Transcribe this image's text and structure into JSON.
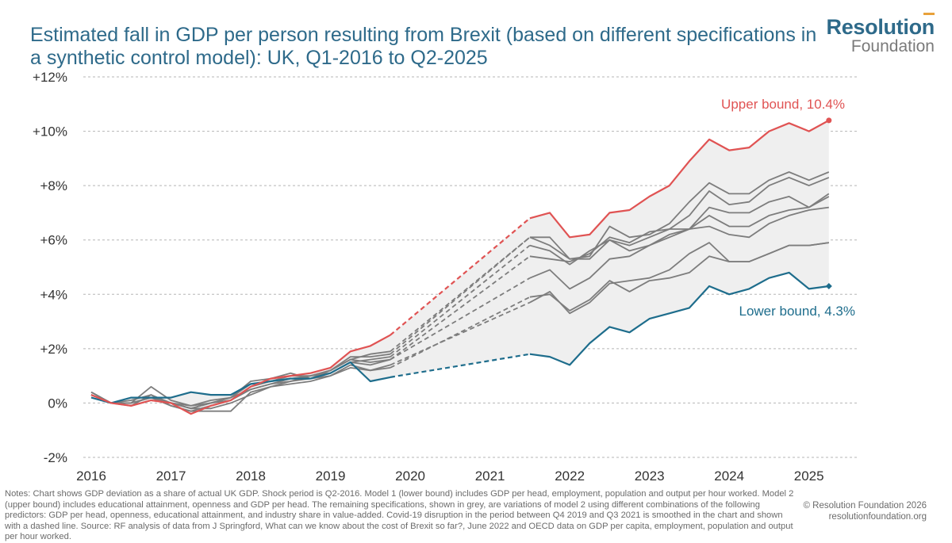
{
  "title": "Estimated fall in GDP per person resulting from Brexit (based on different specifications in a synthetic control model): UK, Q1-2016 to Q2-2025",
  "logo": {
    "line1": "Resolution",
    "line2": "Foundation"
  },
  "notes": "Notes: Chart shows GDP deviation as a share of actual UK GDP. Shock period is Q2-2016. Model 1 (lower bound) includes GDP per head, employment, population and output per hour worked. Model 2 (upper bound) includes educational attainment, openness and GDP per head. The remaining specifications, shown in grey, are variations of model 2 using different combinations of the following predictors: GDP per head, openness, educational attainment, and industry share in value-added. Covid-19 disruption in the period between Q4 2019 and Q3 2021 is smoothed in the chart and shown with a dashed line. Source: RF analysis of data from J Springford, What can we know about the cost of Brexit so far?, June 2022 and OECD data on GDP per capita, employment, population and output per hour worked.",
  "copyright": {
    "line1": "© Resolution Foundation 2026",
    "line2": "resolutionfoundation.org"
  },
  "colors": {
    "upper": "#e05353",
    "lower": "#1e6d8c",
    "grey": "#7d7d7d",
    "band": "#efefef",
    "title": "#2e6a8a"
  },
  "chart_data": {
    "type": "line",
    "x_axis": {
      "min": 2016,
      "max": 2025.6,
      "ticks": [
        2016,
        2017,
        2018,
        2019,
        2020,
        2021,
        2022,
        2023,
        2024,
        2025
      ],
      "tick_labels": [
        "2016",
        "2017",
        "2018",
        "2019",
        "2020",
        "2021",
        "2022",
        "2023",
        "2024",
        "2025"
      ]
    },
    "y_axis": {
      "min": -2,
      "max": 12,
      "ticks": [
        -2,
        0,
        2,
        4,
        6,
        8,
        10,
        12
      ],
      "tick_labels": [
        "-2%",
        "0%",
        "+2%",
        "+4%",
        "+6%",
        "+8%",
        "+10%",
        "+12%"
      ]
    },
    "grid": "horizontal-dashed",
    "gap": {
      "from": 2019.75,
      "to": 2021.5,
      "style": "dashed"
    },
    "annotations": [
      {
        "series": "upper",
        "text": "Upper bound, 10.4%"
      },
      {
        "series": "lower",
        "text": "Lower bound, 4.3%"
      }
    ],
    "upper": {
      "pre_x": [
        2016.0,
        2016.25,
        2016.5,
        2016.75,
        2017.0,
        2017.25,
        2017.5,
        2017.75,
        2018.0,
        2018.25,
        2018.5,
        2018.75,
        2019.0,
        2019.25,
        2019.5,
        2019.75
      ],
      "pre_y": [
        0.3,
        0.0,
        -0.1,
        0.1,
        0.0,
        -0.4,
        -0.1,
        0.1,
        0.6,
        0.9,
        1.0,
        1.1,
        1.3,
        1.9,
        2.1,
        2.5
      ],
      "post_x": [
        2021.5,
        2021.75,
        2022.0,
        2022.25,
        2022.5,
        2022.75,
        2023.0,
        2023.25,
        2023.5,
        2023.75,
        2024.0,
        2024.25,
        2024.5,
        2024.75,
        2025.0,
        2025.25
      ],
      "post_y": [
        6.8,
        7.0,
        6.1,
        6.2,
        7.0,
        7.1,
        7.6,
        8.0,
        8.9,
        9.7,
        9.3,
        9.4,
        10.0,
        10.3,
        10.0,
        10.4
      ]
    },
    "lower": {
      "pre_x": [
        2016.0,
        2016.25,
        2016.5,
        2016.75,
        2017.0,
        2017.25,
        2017.5,
        2017.75,
        2018.0,
        2018.25,
        2018.5,
        2018.75,
        2019.0,
        2019.25,
        2019.5,
        2019.75
      ],
      "pre_y": [
        0.2,
        0.0,
        0.2,
        0.2,
        0.2,
        0.4,
        0.3,
        0.3,
        0.7,
        0.8,
        0.9,
        0.9,
        1.1,
        1.5,
        0.8,
        0.95
      ],
      "post_x": [
        2021.5,
        2021.75,
        2022.0,
        2022.25,
        2022.5,
        2022.75,
        2023.0,
        2023.25,
        2023.5,
        2023.75,
        2024.0,
        2024.25,
        2024.5,
        2024.75,
        2025.0,
        2025.25
      ],
      "post_y": [
        1.8,
        1.7,
        1.4,
        2.2,
        2.8,
        2.6,
        3.1,
        3.3,
        3.5,
        4.3,
        4.0,
        4.2,
        4.6,
        4.8,
        4.2,
        4.3
      ]
    },
    "grey_series": [
      {
        "pre_x": [
          2016.0,
          2016.25,
          2016.5,
          2016.75,
          2017.0,
          2017.25,
          2017.5,
          2017.75,
          2018.0,
          2018.25,
          2018.5,
          2018.75,
          2019.0,
          2019.25,
          2019.5,
          2019.75
        ],
        "pre_y": [
          0.4,
          0.0,
          0.0,
          0.6,
          0.1,
          -0.1,
          0.1,
          0.2,
          0.8,
          0.9,
          1.1,
          0.9,
          1.2,
          1.6,
          1.8,
          1.9
        ],
        "post_x": [
          2021.5,
          2021.75,
          2022.0,
          2022.25,
          2022.5,
          2022.75,
          2023.0,
          2023.25,
          2023.5,
          2023.75,
          2024.0,
          2024.25,
          2024.5,
          2024.75,
          2025.0,
          2025.25
        ],
        "post_y": [
          6.1,
          6.1,
          5.3,
          5.4,
          6.5,
          6.1,
          6.2,
          6.6,
          7.4,
          8.1,
          7.7,
          7.7,
          8.2,
          8.5,
          8.2,
          8.5
        ]
      },
      {
        "pre_x": [
          2016.0,
          2016.25,
          2016.5,
          2016.75,
          2017.0,
          2017.25,
          2017.5,
          2017.75,
          2018.0,
          2018.25,
          2018.5,
          2018.75,
          2019.0,
          2019.25,
          2019.5,
          2019.75
        ],
        "pre_y": [
          0.3,
          0.0,
          0.1,
          0.3,
          0.0,
          -0.2,
          0.0,
          0.2,
          0.7,
          0.8,
          1.0,
          1.0,
          1.2,
          1.7,
          1.7,
          1.8
        ],
        "post_x": [
          2021.5,
          2021.75,
          2022.0,
          2022.25,
          2022.5,
          2022.75,
          2023.0,
          2023.25,
          2023.5,
          2023.75,
          2024.0,
          2024.25,
          2024.5,
          2024.75,
          2025.0,
          2025.25
        ],
        "post_y": [
          6.1,
          5.8,
          5.3,
          5.3,
          6.0,
          5.8,
          6.1,
          6.4,
          6.9,
          7.8,
          7.3,
          7.4,
          8.0,
          8.3,
          8.0,
          8.3
        ]
      },
      {
        "pre_x": [
          2016.0,
          2016.25,
          2016.5,
          2016.75,
          2017.0,
          2017.25,
          2017.5,
          2017.75,
          2018.0,
          2018.25,
          2018.5,
          2018.75,
          2019.0,
          2019.25,
          2019.5,
          2019.75
        ],
        "pre_y": [
          0.3,
          0.0,
          0.0,
          0.2,
          -0.1,
          -0.3,
          -0.1,
          0.1,
          0.5,
          0.7,
          0.9,
          0.9,
          1.1,
          1.5,
          1.6,
          1.7
        ],
        "post_x": [
          2021.5,
          2021.75,
          2022.0,
          2022.25,
          2022.5,
          2022.75,
          2023.0,
          2023.25,
          2023.5,
          2023.75,
          2024.0,
          2024.25,
          2024.5,
          2024.75,
          2025.0,
          2025.25
        ],
        "post_y": [
          5.8,
          5.6,
          5.1,
          5.6,
          6.0,
          5.6,
          5.8,
          6.1,
          6.4,
          7.2,
          7.0,
          7.0,
          7.4,
          7.6,
          7.2,
          7.6
        ]
      },
      {
        "pre_x": [
          2016.0,
          2016.25,
          2016.5,
          2016.75,
          2017.0,
          2017.25,
          2017.5,
          2017.75,
          2018.0,
          2018.25,
          2018.5,
          2018.75,
          2019.0,
          2019.25,
          2019.5,
          2019.75
        ],
        "pre_y": [
          0.4,
          0.0,
          -0.1,
          0.3,
          -0.1,
          -0.3,
          -0.3,
          -0.3,
          0.4,
          0.6,
          0.8,
          1.0,
          1.2,
          1.6,
          1.5,
          1.6
        ],
        "post_x": [
          2021.5,
          2021.75,
          2022.0,
          2022.25,
          2022.5,
          2022.75,
          2023.0,
          2023.25,
          2023.5,
          2023.75,
          2024.0,
          2024.25,
          2024.5,
          2024.75,
          2025.0,
          2025.25
        ],
        "post_y": [
          4.6,
          4.9,
          4.2,
          4.6,
          5.3,
          5.4,
          5.8,
          6.2,
          6.4,
          6.9,
          6.5,
          6.5,
          6.9,
          7.1,
          7.2,
          7.7
        ]
      },
      {
        "pre_x": [
          2016.0,
          2016.25,
          2016.5,
          2016.75,
          2017.0,
          2017.25,
          2017.5,
          2017.75,
          2018.0,
          2018.25,
          2018.5,
          2018.75,
          2019.0,
          2019.25,
          2019.5,
          2019.75
        ],
        "pre_y": [
          0.3,
          0.0,
          0.0,
          0.2,
          0.0,
          -0.2,
          0.0,
          0.1,
          0.6,
          0.8,
          0.9,
          1.0,
          1.1,
          1.5,
          1.4,
          1.6
        ],
        "post_x": [
          2021.5,
          2021.75,
          2022.0,
          2022.25,
          2022.5,
          2022.75,
          2023.0,
          2023.25,
          2023.5,
          2023.75,
          2024.0,
          2024.25,
          2024.5,
          2024.75,
          2025.0,
          2025.25
        ],
        "post_y": [
          5.4,
          5.3,
          5.2,
          5.5,
          6.1,
          5.9,
          6.3,
          6.4,
          6.4,
          6.5,
          6.2,
          6.1,
          6.6,
          6.9,
          7.1,
          7.2
        ]
      },
      {
        "pre_x": [
          2016.0,
          2016.25,
          2016.5,
          2016.75,
          2017.0,
          2017.25,
          2017.5,
          2017.75,
          2018.0,
          2018.25,
          2018.5,
          2018.75,
          2019.0,
          2019.25,
          2019.5,
          2019.75
        ],
        "pre_y": [
          0.3,
          0.0,
          0.0,
          0.2,
          0.0,
          -0.1,
          0.0,
          0.2,
          0.5,
          0.7,
          0.8,
          0.9,
          1.0,
          1.4,
          1.2,
          1.4
        ],
        "post_x": [
          2021.5,
          2021.75,
          2022.0,
          2022.25,
          2022.5,
          2022.75,
          2023.0,
          2023.25,
          2023.5,
          2023.75,
          2024.0,
          2024.25,
          2024.5,
          2024.75,
          2025.0,
          2025.25
        ],
        "post_y": [
          3.7,
          4.1,
          3.3,
          3.7,
          4.4,
          4.5,
          4.6,
          4.9,
          5.5,
          5.9,
          5.2,
          5.2,
          5.5,
          5.8,
          5.8,
          5.9
        ]
      },
      {
        "pre_x": [
          2016.0,
          2016.25,
          2016.5,
          2016.75,
          2017.0,
          2017.25,
          2017.5,
          2017.75,
          2018.0,
          2018.25,
          2018.5,
          2018.75,
          2019.0,
          2019.25,
          2019.5,
          2019.75
        ],
        "pre_y": [
          0.3,
          0.0,
          -0.1,
          0.1,
          0.0,
          -0.2,
          -0.2,
          0.0,
          0.3,
          0.6,
          0.7,
          0.8,
          1.0,
          1.3,
          1.2,
          1.3
        ],
        "post_x": [
          2021.5,
          2021.75,
          2022.0,
          2022.25,
          2022.5,
          2022.75,
          2023.0,
          2023.25,
          2023.5,
          2023.75,
          2024.0,
          2024.25,
          2024.5,
          2024.75,
          2025.0,
          2025.25
        ],
        "post_y": [
          3.9,
          4.0,
          3.4,
          3.8,
          4.5,
          4.1,
          4.5,
          4.6,
          4.8,
          5.4,
          5.2,
          5.2,
          5.5,
          5.8,
          5.8,
          5.9
        ]
      }
    ]
  }
}
